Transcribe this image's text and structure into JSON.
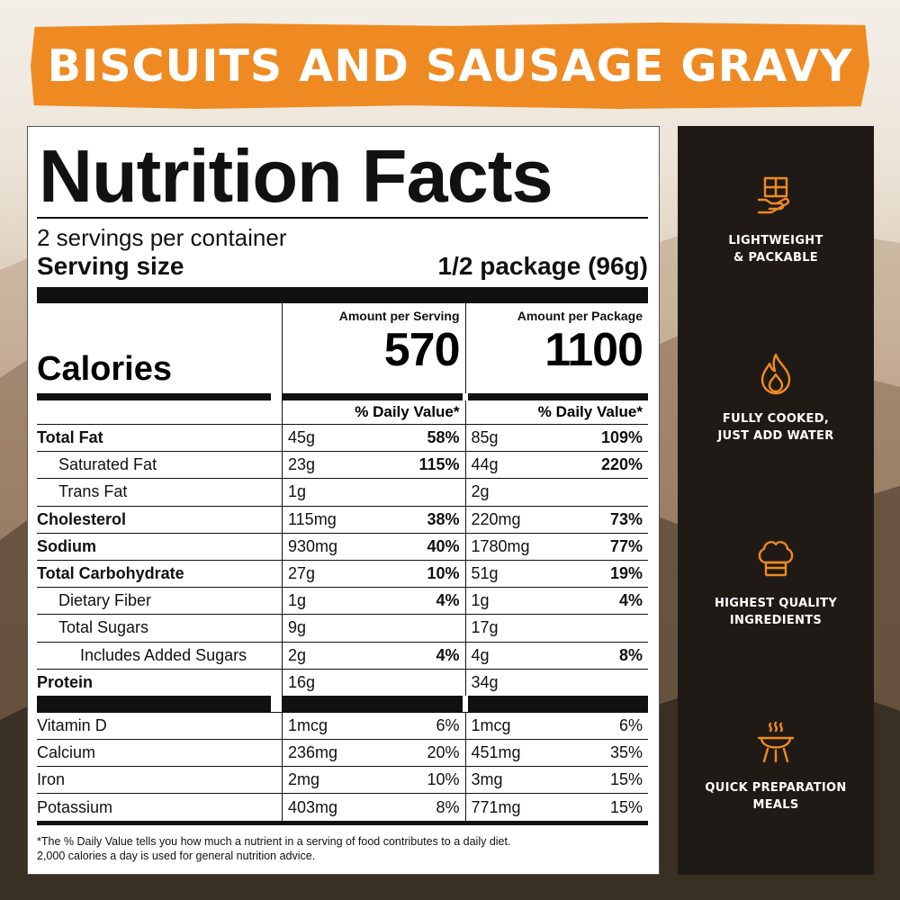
{
  "banner": {
    "title": "BISCUITS AND SAUSAGE GRAVY"
  },
  "label": {
    "title": "Nutrition Facts",
    "servings": "2 servings per container",
    "serving_size_label": "Serving size",
    "serving_size_value": "1/2 package (96g)",
    "amount_per_serving": "Amount per Serving",
    "amount_per_package": "Amount per Package",
    "calories_label": "Calories",
    "calories_serving": "570",
    "calories_package": "1100",
    "daily_value_header": "% Daily Value*",
    "nutrients": [
      {
        "name": "Total Fat",
        "s_amt": "45g",
        "s_pct": "58%",
        "p_amt": "85g",
        "p_pct": "109%"
      },
      {
        "name": "Saturated Fat",
        "s_amt": "23g",
        "s_pct": "115%",
        "p_amt": "44g",
        "p_pct": "220%"
      },
      {
        "name": "Trans Fat",
        "s_amt": "1g",
        "s_pct": "",
        "p_amt": "2g",
        "p_pct": ""
      },
      {
        "name": "Cholesterol",
        "s_amt": "115mg",
        "s_pct": "38%",
        "p_amt": "220mg",
        "p_pct": "73%"
      },
      {
        "name": "Sodium",
        "s_amt": "930mg",
        "s_pct": "40%",
        "p_amt": "1780mg",
        "p_pct": "77%"
      },
      {
        "name": "Total Carbohydrate",
        "s_amt": "27g",
        "s_pct": "10%",
        "p_amt": "51g",
        "p_pct": "19%"
      },
      {
        "name": "Dietary Fiber",
        "s_amt": "1g",
        "s_pct": "4%",
        "p_amt": "1g",
        "p_pct": "4%"
      },
      {
        "name": "Total Sugars",
        "s_amt": "9g",
        "s_pct": "",
        "p_amt": "17g",
        "p_pct": ""
      },
      {
        "name": "Includes Added Sugars",
        "s_amt": "2g",
        "s_pct": "4%",
        "p_amt": "4g",
        "p_pct": "8%"
      },
      {
        "name": "Protein",
        "s_amt": "16g",
        "s_pct": "",
        "p_amt": "34g",
        "p_pct": ""
      }
    ],
    "vitamins": [
      {
        "name": "Vitamin D",
        "s_amt": "1mcg",
        "s_pct": "6%",
        "p_amt": "1mcg",
        "p_pct": "6%"
      },
      {
        "name": "Calcium",
        "s_amt": "236mg",
        "s_pct": "20%",
        "p_amt": "451mg",
        "p_pct": "35%"
      },
      {
        "name": "Iron",
        "s_amt": "2mg",
        "s_pct": "10%",
        "p_amt": "3mg",
        "p_pct": "15%"
      },
      {
        "name": "Potassium",
        "s_amt": "403mg",
        "s_pct": "8%",
        "p_amt": "771mg",
        "p_pct": "15%"
      }
    ],
    "footnote_line1": "*The % Daily Value tells you how much a nutrient in a serving of food contributes to a daily diet.",
    "footnote_line2": "2,000 calories a day is used for general nutrition advice."
  },
  "features": [
    {
      "icon": "package-hand-icon",
      "line1": "LIGHTWEIGHT",
      "line2": "& PACKABLE"
    },
    {
      "icon": "flame-icon",
      "line1": "FULLY COOKED,",
      "line2": "JUST ADD WATER"
    },
    {
      "icon": "chef-hat-icon",
      "line1": "HIGHEST QUALITY",
      "line2": "INGREDIENTS"
    },
    {
      "icon": "grill-icon",
      "line1": "QUICK PREPARATION",
      "line2": "MEALS"
    }
  ],
  "colors": {
    "accent": "#ef8a22",
    "dark_panel": "#201a17"
  }
}
